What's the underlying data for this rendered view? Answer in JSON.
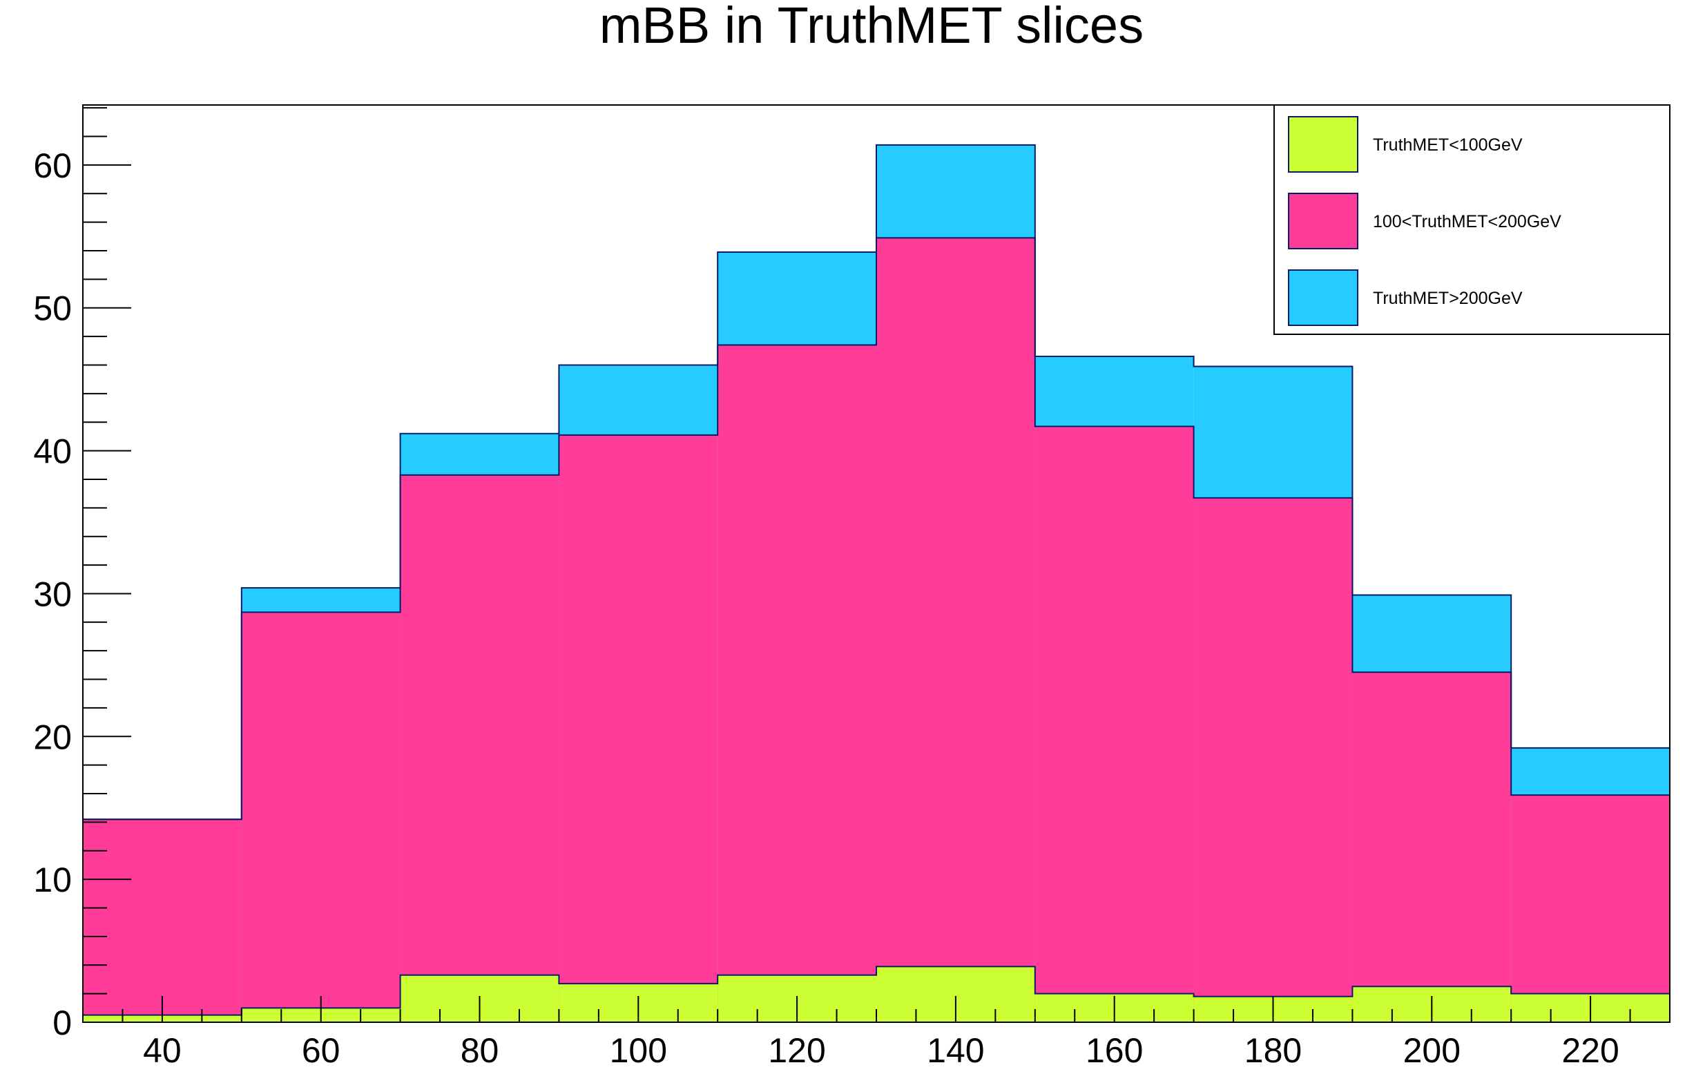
{
  "chart_data": {
    "type": "bar",
    "title": "mBB in TruthMET slices",
    "xlabel": "",
    "ylabel": "",
    "xlim": [
      30,
      230
    ],
    "ylim": [
      0,
      64.2
    ],
    "bin_edges": [
      30,
      50,
      70,
      90,
      110,
      130,
      150,
      170,
      190,
      210,
      230
    ],
    "stacked": true,
    "legend_position": "top-right",
    "xticks": [
      40,
      60,
      80,
      100,
      120,
      140,
      160,
      180,
      200,
      220
    ],
    "yticks": [
      0,
      10,
      20,
      30,
      40,
      50,
      60
    ],
    "series": [
      {
        "name": "TruthMET<100GeV",
        "color": "#ccff33",
        "values": [
          0.5,
          1.0,
          3.3,
          2.7,
          3.3,
          3.9,
          2.0,
          1.8,
          2.5,
          2.0
        ]
      },
      {
        "name": "100<TruthMET<200GeV",
        "color": "#ff3d99",
        "values": [
          13.7,
          27.7,
          35.0,
          38.4,
          44.1,
          51.0,
          39.7,
          34.9,
          22.0,
          13.9
        ]
      },
      {
        "name": "TruthMET>200GeV",
        "color": "#26ccff",
        "values": [
          0.0,
          1.7,
          2.9,
          4.9,
          6.5,
          6.5,
          4.9,
          9.2,
          5.4,
          3.3
        ]
      }
    ]
  }
}
